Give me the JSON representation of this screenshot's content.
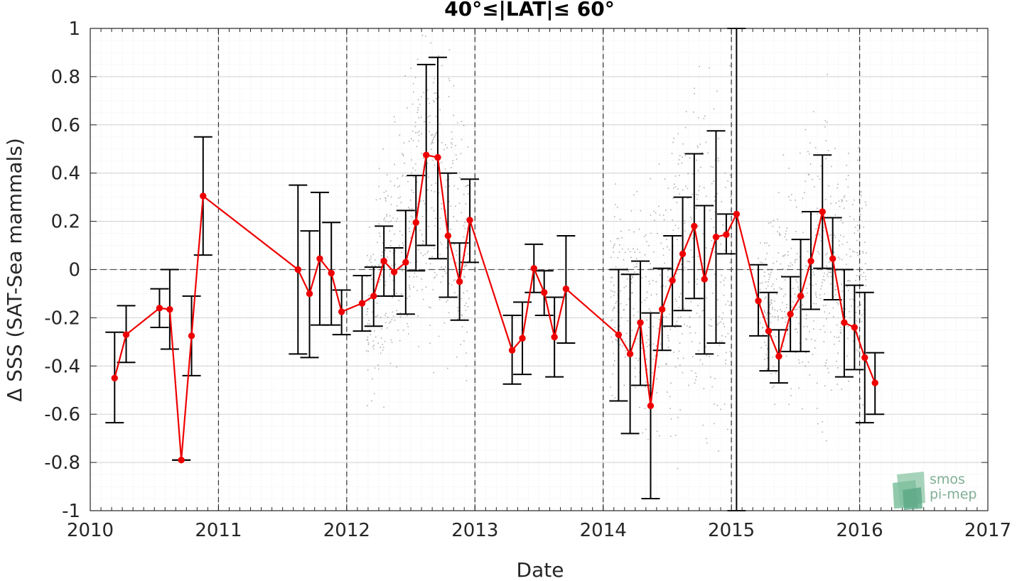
{
  "chart_data": {
    "type": "scatter",
    "title": "40°≤|LAT|≤ 60°",
    "xlabel": "Date",
    "ylabel": "Δ SSS (SAT-Sea mammals)",
    "xlim": [
      2010,
      2017
    ],
    "ylim": [
      -1,
      1
    ],
    "x_ticks": [
      "2010",
      "2011",
      "2012",
      "2013",
      "2014",
      "2015",
      "2016",
      "2017"
    ],
    "y_ticks": [
      "-1",
      "-0.8",
      "-0.6",
      "-0.4",
      "-0.2",
      "0",
      "0.2",
      "0.4",
      "0.6",
      "0.8",
      "1"
    ],
    "grid": true,
    "year_lines": [
      2011,
      2012,
      2013,
      2014,
      2015,
      2016
    ],
    "zero_line": 0,
    "series": [
      {
        "color": "#ee0000",
        "marker": "circle",
        "points": [
          {
            "x": 2010.19,
            "y": -0.45,
            "lo": -0.635,
            "hi": -0.26
          },
          {
            "x": 2010.28,
            "y": -0.27,
            "lo": -0.385,
            "hi": -0.15
          },
          {
            "x": 2010.54,
            "y": -0.16,
            "lo": -0.24,
            "hi": -0.08
          },
          {
            "x": 2010.62,
            "y": -0.165,
            "lo": -0.33,
            "hi": 0.0
          },
          {
            "x": 2010.71,
            "y": -0.79,
            "lo": -0.79,
            "hi": -0.79
          },
          {
            "x": 2010.79,
            "y": -0.275,
            "lo": -0.44,
            "hi": -0.11
          },
          {
            "x": 2010.88,
            "y": 0.305,
            "lo": 0.06,
            "hi": 0.55
          },
          {
            "x": 2011.62,
            "y": 0.0,
            "lo": -0.35,
            "hi": 0.35
          },
          {
            "x": 2011.71,
            "y": -0.1,
            "lo": -0.365,
            "hi": 0.16
          },
          {
            "x": 2011.79,
            "y": 0.045,
            "lo": -0.23,
            "hi": 0.32
          },
          {
            "x": 2011.88,
            "y": -0.015,
            "lo": -0.23,
            "hi": 0.195
          },
          {
            "x": 2011.96,
            "y": -0.175,
            "lo": -0.27,
            "hi": -0.085
          },
          {
            "x": 2012.12,
            "y": -0.14,
            "lo": -0.255,
            "hi": -0.025
          },
          {
            "x": 2012.21,
            "y": -0.11,
            "lo": -0.235,
            "hi": 0.01
          },
          {
            "x": 2012.29,
            "y": 0.035,
            "lo": -0.11,
            "hi": 0.18
          },
          {
            "x": 2012.37,
            "y": -0.01,
            "lo": -0.11,
            "hi": 0.09
          },
          {
            "x": 2012.46,
            "y": 0.03,
            "lo": -0.185,
            "hi": 0.245
          },
          {
            "x": 2012.54,
            "y": 0.195,
            "lo": -0.005,
            "hi": 0.39
          },
          {
            "x": 2012.62,
            "y": 0.475,
            "lo": 0.1,
            "hi": 0.85
          },
          {
            "x": 2012.71,
            "y": 0.465,
            "lo": 0.045,
            "hi": 0.88
          },
          {
            "x": 2012.79,
            "y": 0.14,
            "lo": -0.115,
            "hi": 0.4
          },
          {
            "x": 2012.88,
            "y": -0.05,
            "lo": -0.21,
            "hi": 0.11
          },
          {
            "x": 2012.96,
            "y": 0.205,
            "lo": 0.03,
            "hi": 0.375
          },
          {
            "x": 2013.29,
            "y": -0.335,
            "lo": -0.475,
            "hi": -0.19
          },
          {
            "x": 2013.37,
            "y": -0.285,
            "lo": -0.435,
            "hi": -0.135
          },
          {
            "x": 2013.46,
            "y": 0.005,
            "lo": -0.095,
            "hi": 0.105
          },
          {
            "x": 2013.54,
            "y": -0.095,
            "lo": -0.19,
            "hi": -0.005
          },
          {
            "x": 2013.62,
            "y": -0.28,
            "lo": -0.445,
            "hi": -0.115
          },
          {
            "x": 2013.71,
            "y": -0.08,
            "lo": -0.305,
            "hi": 0.14
          },
          {
            "x": 2014.12,
            "y": -0.27,
            "lo": -0.545,
            "hi": 0.0
          },
          {
            "x": 2014.21,
            "y": -0.35,
            "lo": -0.68,
            "hi": -0.02
          },
          {
            "x": 2014.29,
            "y": -0.22,
            "lo": -0.48,
            "hi": 0.035
          },
          {
            "x": 2014.37,
            "y": -0.565,
            "lo": -0.95,
            "hi": -0.18
          },
          {
            "x": 2014.46,
            "y": -0.165,
            "lo": -0.335,
            "hi": 0.005
          },
          {
            "x": 2014.54,
            "y": -0.045,
            "lo": -0.235,
            "hi": 0.14
          },
          {
            "x": 2014.62,
            "y": 0.065,
            "lo": -0.17,
            "hi": 0.3
          },
          {
            "x": 2014.71,
            "y": 0.18,
            "lo": -0.12,
            "hi": 0.48
          },
          {
            "x": 2014.79,
            "y": -0.04,
            "lo": -0.35,
            "hi": 0.265
          },
          {
            "x": 2014.88,
            "y": 0.135,
            "lo": -0.305,
            "hi": 0.575
          },
          {
            "x": 2014.96,
            "y": 0.145,
            "lo": 0.065,
            "hi": 0.23
          },
          {
            "x": 2015.04,
            "y": 0.23,
            "lo": -1.0,
            "hi": 1.0
          },
          {
            "x": 2015.21,
            "y": -0.13,
            "lo": -0.275,
            "hi": 0.02
          },
          {
            "x": 2015.29,
            "y": -0.255,
            "lo": -0.42,
            "hi": -0.095
          },
          {
            "x": 2015.37,
            "y": -0.36,
            "lo": -0.47,
            "hi": -0.25
          },
          {
            "x": 2015.46,
            "y": -0.185,
            "lo": -0.34,
            "hi": -0.03
          },
          {
            "x": 2015.54,
            "y": -0.11,
            "lo": -0.34,
            "hi": 0.125
          },
          {
            "x": 2015.62,
            "y": 0.035,
            "lo": -0.165,
            "hi": 0.24
          },
          {
            "x": 2015.71,
            "y": 0.24,
            "lo": 0.005,
            "hi": 0.475
          },
          {
            "x": 2015.79,
            "y": 0.045,
            "lo": -0.125,
            "hi": 0.215
          },
          {
            "x": 2015.88,
            "y": -0.22,
            "lo": -0.445,
            "hi": 0.0
          },
          {
            "x": 2015.96,
            "y": -0.24,
            "lo": -0.415,
            "hi": -0.065
          },
          {
            "x": 2016.04,
            "y": -0.365,
            "lo": -0.635,
            "hi": -0.095
          },
          {
            "x": 2016.12,
            "y": -0.47,
            "lo": -0.6,
            "hi": -0.345
          }
        ]
      }
    ],
    "scatter_clusters": [
      {
        "x0": 2012.15,
        "x1": 2012.95,
        "peak": 2012.65,
        "center": 0.45,
        "spread": 0.28
      },
      {
        "x0": 2014.05,
        "x1": 2015.0,
        "peak": 2014.8,
        "center": 0.05,
        "spread": 0.32
      },
      {
        "x0": 2015.2,
        "x1": 2016.05,
        "peak": 2015.72,
        "center": 0.05,
        "spread": 0.25
      }
    ]
  },
  "logo": {
    "line1": "smos",
    "line2": "pi-mep"
  }
}
